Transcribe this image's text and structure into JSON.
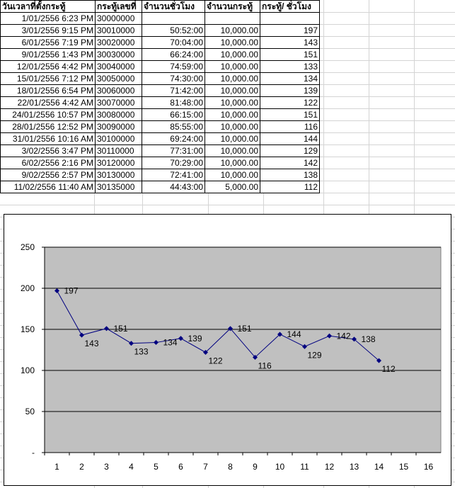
{
  "table": {
    "headers": [
      "วันเวลาที่ตั้งกระทู้",
      "กระทู้เลขที่",
      "จำนวนชั่วโมง",
      "จำนวนกระทู้",
      "กระทู้/ ชั่วโมง"
    ],
    "rows": [
      [
        "1/01/2556 6:23 PM",
        "30000000",
        "",
        "",
        ""
      ],
      [
        "3/01/2556 9:15 PM",
        "30010000",
        "50:52:00",
        "10,000.00",
        "197"
      ],
      [
        "6/01/2556 7:19 PM",
        "30020000",
        "70:04:00",
        "10,000.00",
        "143"
      ],
      [
        "9/01/2556 1:43 PM",
        "30030000",
        "66:24:00",
        "10,000.00",
        "151"
      ],
      [
        "12/01/2556 4:42 PM",
        "30040000",
        "74:59:00",
        "10,000.00",
        "133"
      ],
      [
        "15/01/2556 7:12 PM",
        "30050000",
        "74:30:00",
        "10,000.00",
        "134"
      ],
      [
        "18/01/2556 6:54 PM",
        "30060000",
        "71:42:00",
        "10,000.00",
        "139"
      ],
      [
        "22/01/2556 4:42 AM",
        "30070000",
        "81:48:00",
        "10,000.00",
        "122"
      ],
      [
        "24/01/2556 10:57 PM",
        "30080000",
        "66:15:00",
        "10,000.00",
        "151"
      ],
      [
        "28/01/2556 12:52 PM",
        "30090000",
        "85:55:00",
        "10,000.00",
        "116"
      ],
      [
        "31/01/2556 10:16 AM",
        "30100000",
        "69:24:00",
        "10,000.00",
        "144"
      ],
      [
        "3/02/2556 3:47 PM",
        "30110000",
        "77:31:00",
        "10,000.00",
        "129"
      ],
      [
        "6/02/2556 2:16 PM",
        "30120000",
        "70:29:00",
        "10,000.00",
        "142"
      ],
      [
        "9/02/2556 2:57 PM",
        "30130000",
        "72:41:00",
        "10,000.00",
        "138"
      ],
      [
        "11/02/2556 11:40 AM",
        "30135000",
        "44:43:00",
        "5,000.00",
        "112"
      ]
    ]
  },
  "colors": {
    "plot_background": "#c0c0c0",
    "series_line": "#000080",
    "gridline": "#000000"
  },
  "chart_data": {
    "type": "line",
    "title": "",
    "xlabel": "",
    "ylabel": "",
    "categories": [
      "1",
      "2",
      "3",
      "4",
      "5",
      "6",
      "7",
      "8",
      "9",
      "10",
      "11",
      "12",
      "13",
      "14",
      "15",
      "16"
    ],
    "series": [
      {
        "name": "",
        "x": [
          1,
          2,
          3,
          4,
          5,
          6,
          7,
          8,
          9,
          10,
          11,
          12,
          13,
          14
        ],
        "values": [
          197,
          143,
          151,
          133,
          134,
          139,
          122,
          151,
          116,
          144,
          129,
          142,
          138,
          112
        ],
        "data_labels": [
          "197",
          "143",
          "151",
          "133",
          "134",
          "139",
          "122",
          "151",
          "116",
          "144",
          "129",
          "142",
          "138",
          "112"
        ]
      }
    ],
    "yticks": [
      0,
      50,
      100,
      150,
      200,
      250
    ],
    "ytick_labels": [
      "-",
      "50",
      "100",
      "150",
      "200",
      "250"
    ],
    "ylim": [
      0,
      250
    ],
    "xlim": [
      1,
      16
    ],
    "grid": true,
    "legend": "none"
  }
}
